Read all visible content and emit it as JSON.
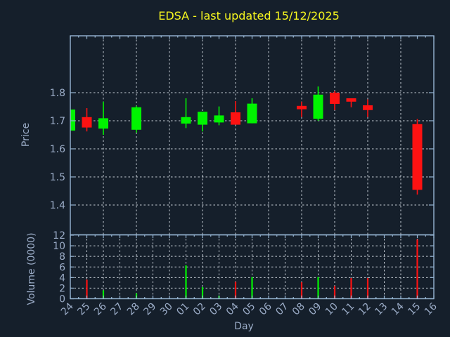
{
  "title": "EDSA - last updated 15/12/2025",
  "price_axis": {
    "label": "Price",
    "ticks": [
      1.8,
      1.7,
      1.6,
      1.5,
      1.4
    ]
  },
  "volume_axis": {
    "label": "Volume (0000)",
    "ticks": [
      12,
      10,
      8,
      6,
      4,
      2,
      0
    ]
  },
  "x_axis": {
    "label": "Day"
  },
  "colors": {
    "background": "#151f2b",
    "frame": "#97b6d4",
    "grid": "#c4cbd3",
    "tick_label": "#9bacc7",
    "axis_label": "#9bacc7",
    "title": "#f7f71f",
    "up": "#00f400",
    "down": "#fd1212"
  },
  "chart_data": {
    "type": "candlestick",
    "title": "EDSA - last updated 15/12/2025",
    "xlabel": "Day",
    "ylabel": "Price",
    "volume_ylabel": "Volume (0000)",
    "price_ylim": [
      1.295,
      2.0
    ],
    "volume_ylim": [
      0,
      12.1
    ],
    "grid": "dotted",
    "x_days": [
      "24",
      "25",
      "26",
      "27",
      "28",
      "29",
      "30",
      "01",
      "02",
      "03",
      "04",
      "05",
      "06",
      "07",
      "08",
      "09",
      "10",
      "11",
      "12",
      "13",
      "14",
      "15",
      "16"
    ],
    "candles": [
      {
        "day": "24",
        "open": 1.665,
        "high": 1.74,
        "low": 1.665,
        "close": 1.74,
        "volume_0000": 0.0
      },
      {
        "day": "25",
        "open": 1.713,
        "high": 1.745,
        "low": 1.662,
        "close": 1.676,
        "volume_0000": 3.6
      },
      {
        "day": "26",
        "open": 1.672,
        "high": 1.768,
        "low": 1.65,
        "close": 1.709,
        "volume_0000": 1.6
      },
      {
        "day": "28",
        "open": 1.668,
        "high": 1.753,
        "low": 1.658,
        "close": 1.748,
        "volume_0000": 1.0
      },
      {
        "day": "01",
        "open": 1.69,
        "high": 1.78,
        "low": 1.674,
        "close": 1.713,
        "volume_0000": 6.3
      },
      {
        "day": "02",
        "open": 1.686,
        "high": 1.732,
        "low": 1.662,
        "close": 1.732,
        "volume_0000": 2.2
      },
      {
        "day": "03",
        "open": 1.694,
        "high": 1.751,
        "low": 1.684,
        "close": 1.719,
        "volume_0000": 0.6
      },
      {
        "day": "04",
        "open": 1.73,
        "high": 1.77,
        "low": 1.686,
        "close": 1.686,
        "volume_0000": 3.2
      },
      {
        "day": "05",
        "open": 1.691,
        "high": 1.78,
        "low": 1.691,
        "close": 1.761,
        "volume_0000": 4.1
      },
      {
        "day": "08",
        "open": 1.753,
        "high": 1.768,
        "low": 1.713,
        "close": 1.741,
        "volume_0000": 3.1
      },
      {
        "day": "09",
        "open": 1.707,
        "high": 1.822,
        "low": 1.7,
        "close": 1.793,
        "volume_0000": 4.1
      },
      {
        "day": "10",
        "open": 1.8,
        "high": 1.806,
        "low": 1.738,
        "close": 1.76,
        "volume_0000": 2.4
      },
      {
        "day": "11",
        "open": 1.78,
        "high": 1.78,
        "low": 1.748,
        "close": 1.768,
        "volume_0000": 3.9
      },
      {
        "day": "12",
        "open": 1.755,
        "high": 1.776,
        "low": 1.713,
        "close": 1.738,
        "volume_0000": 3.9
      },
      {
        "day": "15",
        "open": 1.688,
        "high": 1.706,
        "low": 1.437,
        "close": 1.454,
        "volume_0000": 11.2
      }
    ]
  }
}
